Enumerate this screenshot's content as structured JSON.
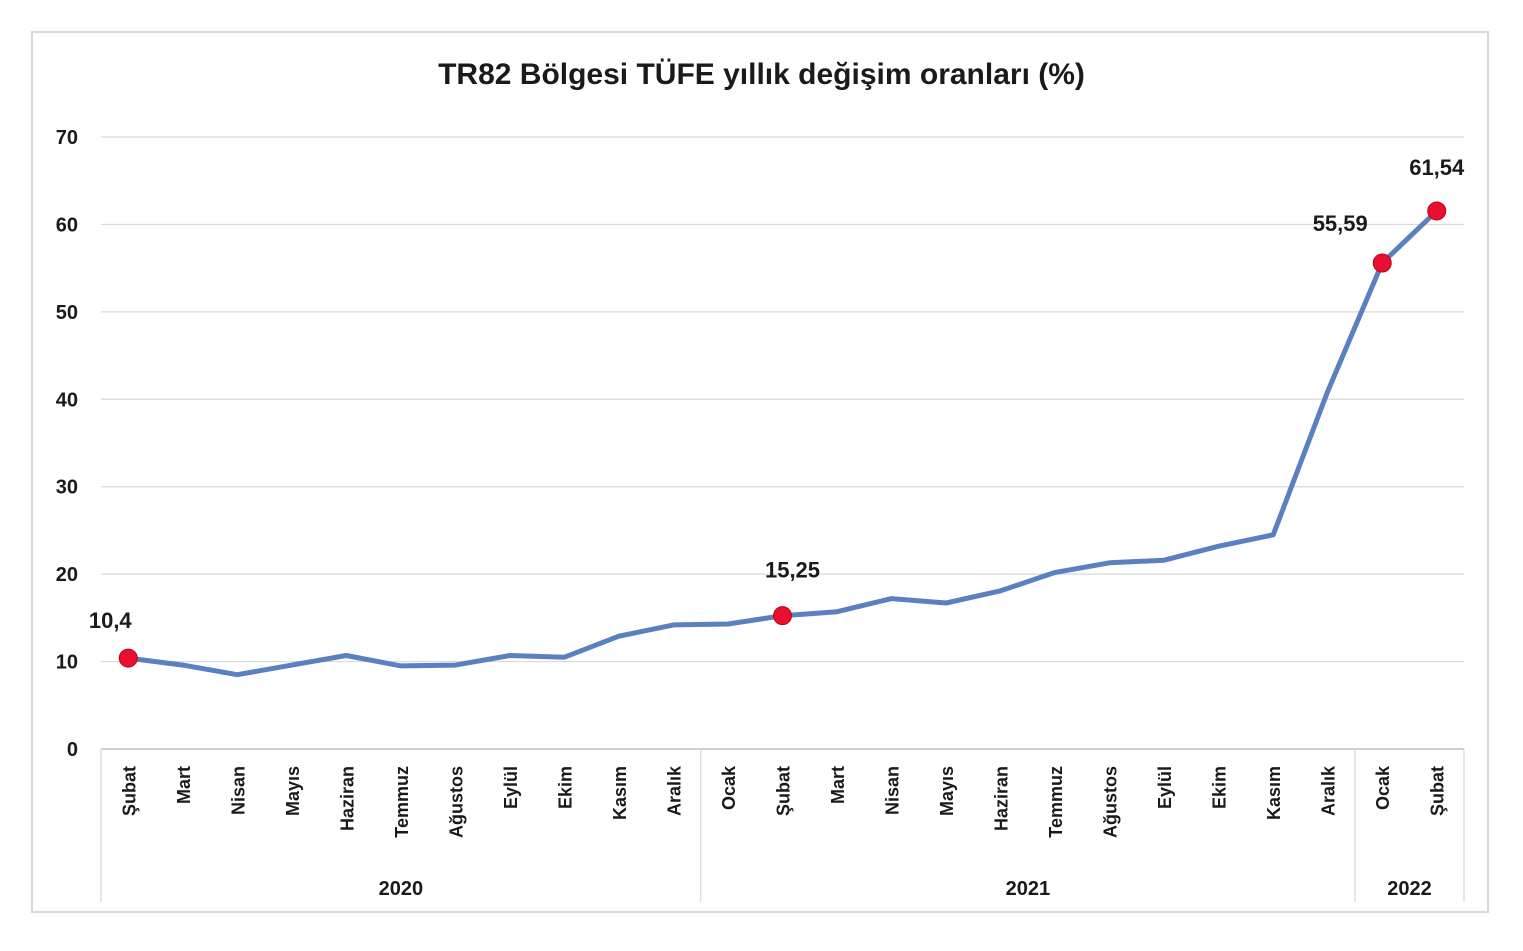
{
  "chart_data": {
    "type": "line",
    "title": "TR82 Bölgesi TÜFE yıllık değişim oranları (%)",
    "xlabel": "",
    "ylabel": "",
    "ylim": [
      0,
      70
    ],
    "yticks": [
      0,
      10,
      20,
      30,
      40,
      50,
      60,
      70
    ],
    "grid": true,
    "categories": [
      "Şubat",
      "Mart",
      "Nisan",
      "Mayıs",
      "Haziran",
      "Temmuz",
      "Ağustos",
      "Eylül",
      "Ekim",
      "Kasım",
      "Aralık",
      "Ocak",
      "Şubat",
      "Mart",
      "Nisan",
      "Mayıs",
      "Haziran",
      "Temmuz",
      "Ağustos",
      "Eylül",
      "Ekim",
      "Kasım",
      "Aralık",
      "Ocak",
      "Şubat"
    ],
    "groups": [
      {
        "label": "2020",
        "start": 0,
        "end": 10
      },
      {
        "label": "2021",
        "start": 11,
        "end": 22
      },
      {
        "label": "2022",
        "start": 23,
        "end": 24
      }
    ],
    "series": [
      {
        "values": [
          10.4,
          9.6,
          8.5,
          9.6,
          10.7,
          9.5,
          9.6,
          10.7,
          10.5,
          12.9,
          14.2,
          14.3,
          15.25,
          15.7,
          17.2,
          16.7,
          18.1,
          20.2,
          21.3,
          21.6,
          23.2,
          24.5,
          40.9,
          55.59,
          61.54
        ],
        "color": "#5b80c1"
      }
    ],
    "highlighted_points": [
      {
        "index": 0,
        "label": "10,4"
      },
      {
        "index": 12,
        "label": "15,25"
      },
      {
        "index": 23,
        "label": "55,59"
      },
      {
        "index": 24,
        "label": "61,54"
      }
    ],
    "marker_color": "#e8102e"
  }
}
